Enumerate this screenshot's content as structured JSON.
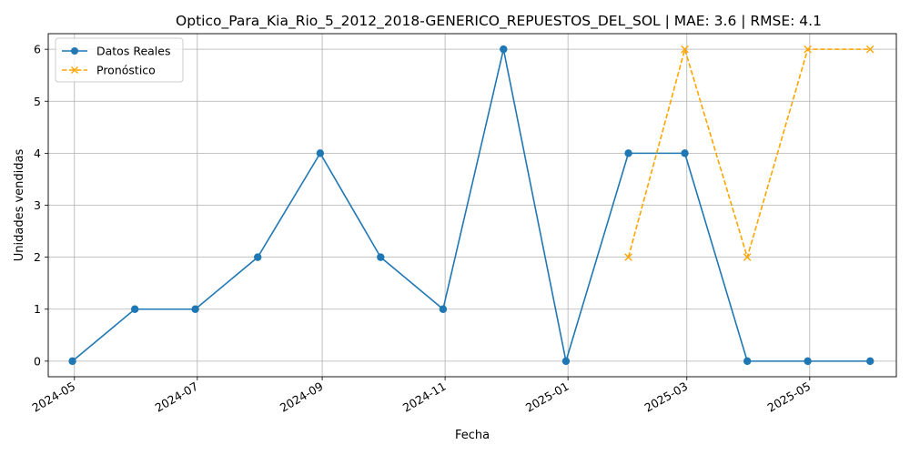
{
  "chart_data": {
    "type": "line",
    "title": "Optico_Para_Kia_Rio_5_2012_2018-GENERICO_REPUESTOS_DEL_SOL | MAE: 3.6 | RMSE: 4.1",
    "xlabel": "Fecha",
    "ylabel": "Unidades vendidas",
    "ylim": [
      -0.3,
      6.3
    ],
    "yticks": [
      "0",
      "1",
      "2",
      "3",
      "4",
      "5",
      "6"
    ],
    "xlim": [
      "2024-04-18",
      "2025-06-13"
    ],
    "xticks": [
      "2024-05",
      "2024-07",
      "2024-09",
      "2024-11",
      "2025-01",
      "2025-03",
      "2025-05"
    ],
    "grid": true,
    "legend_position": "upper-left",
    "series": [
      {
        "name": "Datos Reales",
        "color": "#1f77b4",
        "style": "solid",
        "marker": "circle",
        "x": [
          "2024-04-30",
          "2024-05-31",
          "2024-06-30",
          "2024-07-31",
          "2024-08-31",
          "2024-09-30",
          "2024-10-31",
          "2024-11-30",
          "2024-12-31",
          "2025-01-31",
          "2025-02-28",
          "2025-03-31",
          "2025-04-30",
          "2025-05-31"
        ],
        "values": [
          0,
          1,
          1,
          2,
          4,
          2,
          1,
          6,
          0,
          4,
          4,
          0,
          0,
          0
        ]
      },
      {
        "name": "Pronóstico",
        "color": "#ffa500",
        "style": "dashed",
        "marker": "x",
        "x": [
          "2025-01-31",
          "2025-02-28",
          "2025-03-31",
          "2025-04-30",
          "2025-05-31"
        ],
        "values": [
          2,
          6,
          2,
          6,
          6
        ]
      }
    ]
  }
}
